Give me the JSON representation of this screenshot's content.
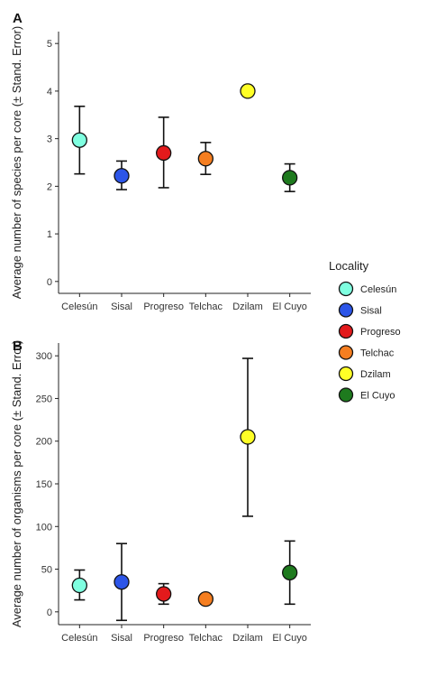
{
  "chart_data": [
    {
      "type": "scatter",
      "panel": "A",
      "ylabel": "Average number of species per core (± Stand. Error)",
      "xlabel": "",
      "categories": [
        "Celesún",
        "Sisal",
        "Progreso",
        "Telchac",
        "Dzilam",
        "El Cuyo"
      ],
      "values": [
        2.97,
        2.22,
        2.7,
        2.58,
        4.0,
        2.18
      ],
      "err_low": [
        2.26,
        1.93,
        1.97,
        2.25,
        4.0,
        1.89
      ],
      "err_high": [
        3.68,
        2.53,
        3.45,
        2.92,
        4.0,
        2.47
      ],
      "ylim": [
        -0.25,
        5.25
      ],
      "yticks": [
        0,
        1,
        2,
        3,
        4,
        5
      ],
      "grid": false
    },
    {
      "type": "scatter",
      "panel": "B",
      "ylabel": "Average number of organisms per core (± Stand. Error)",
      "xlabel": "",
      "categories": [
        "Celesún",
        "Sisal",
        "Progreso",
        "Telchac",
        "Dzilam",
        "El Cuyo"
      ],
      "values": [
        31,
        35,
        21,
        15,
        205,
        46
      ],
      "err_low": [
        14,
        -10,
        9,
        15,
        112,
        9
      ],
      "err_high": [
        49,
        80,
        33,
        15,
        297,
        83
      ],
      "ylim": [
        -15,
        315
      ],
      "yticks": [
        0,
        50,
        100,
        150,
        200,
        250,
        300
      ],
      "grid": false
    }
  ],
  "legend": {
    "title": "Locality",
    "position": "right",
    "items": [
      {
        "label": "Celesún",
        "color": "#7fffe0"
      },
      {
        "label": "Sisal",
        "color": "#2c55e8"
      },
      {
        "label": "Progreso",
        "color": "#e31a1c"
      },
      {
        "label": "Telchac",
        "color": "#f57e20"
      },
      {
        "label": "Dzilam",
        "color": "#ffff26"
      },
      {
        "label": "El Cuyo",
        "color": "#1e7a1e"
      }
    ]
  }
}
